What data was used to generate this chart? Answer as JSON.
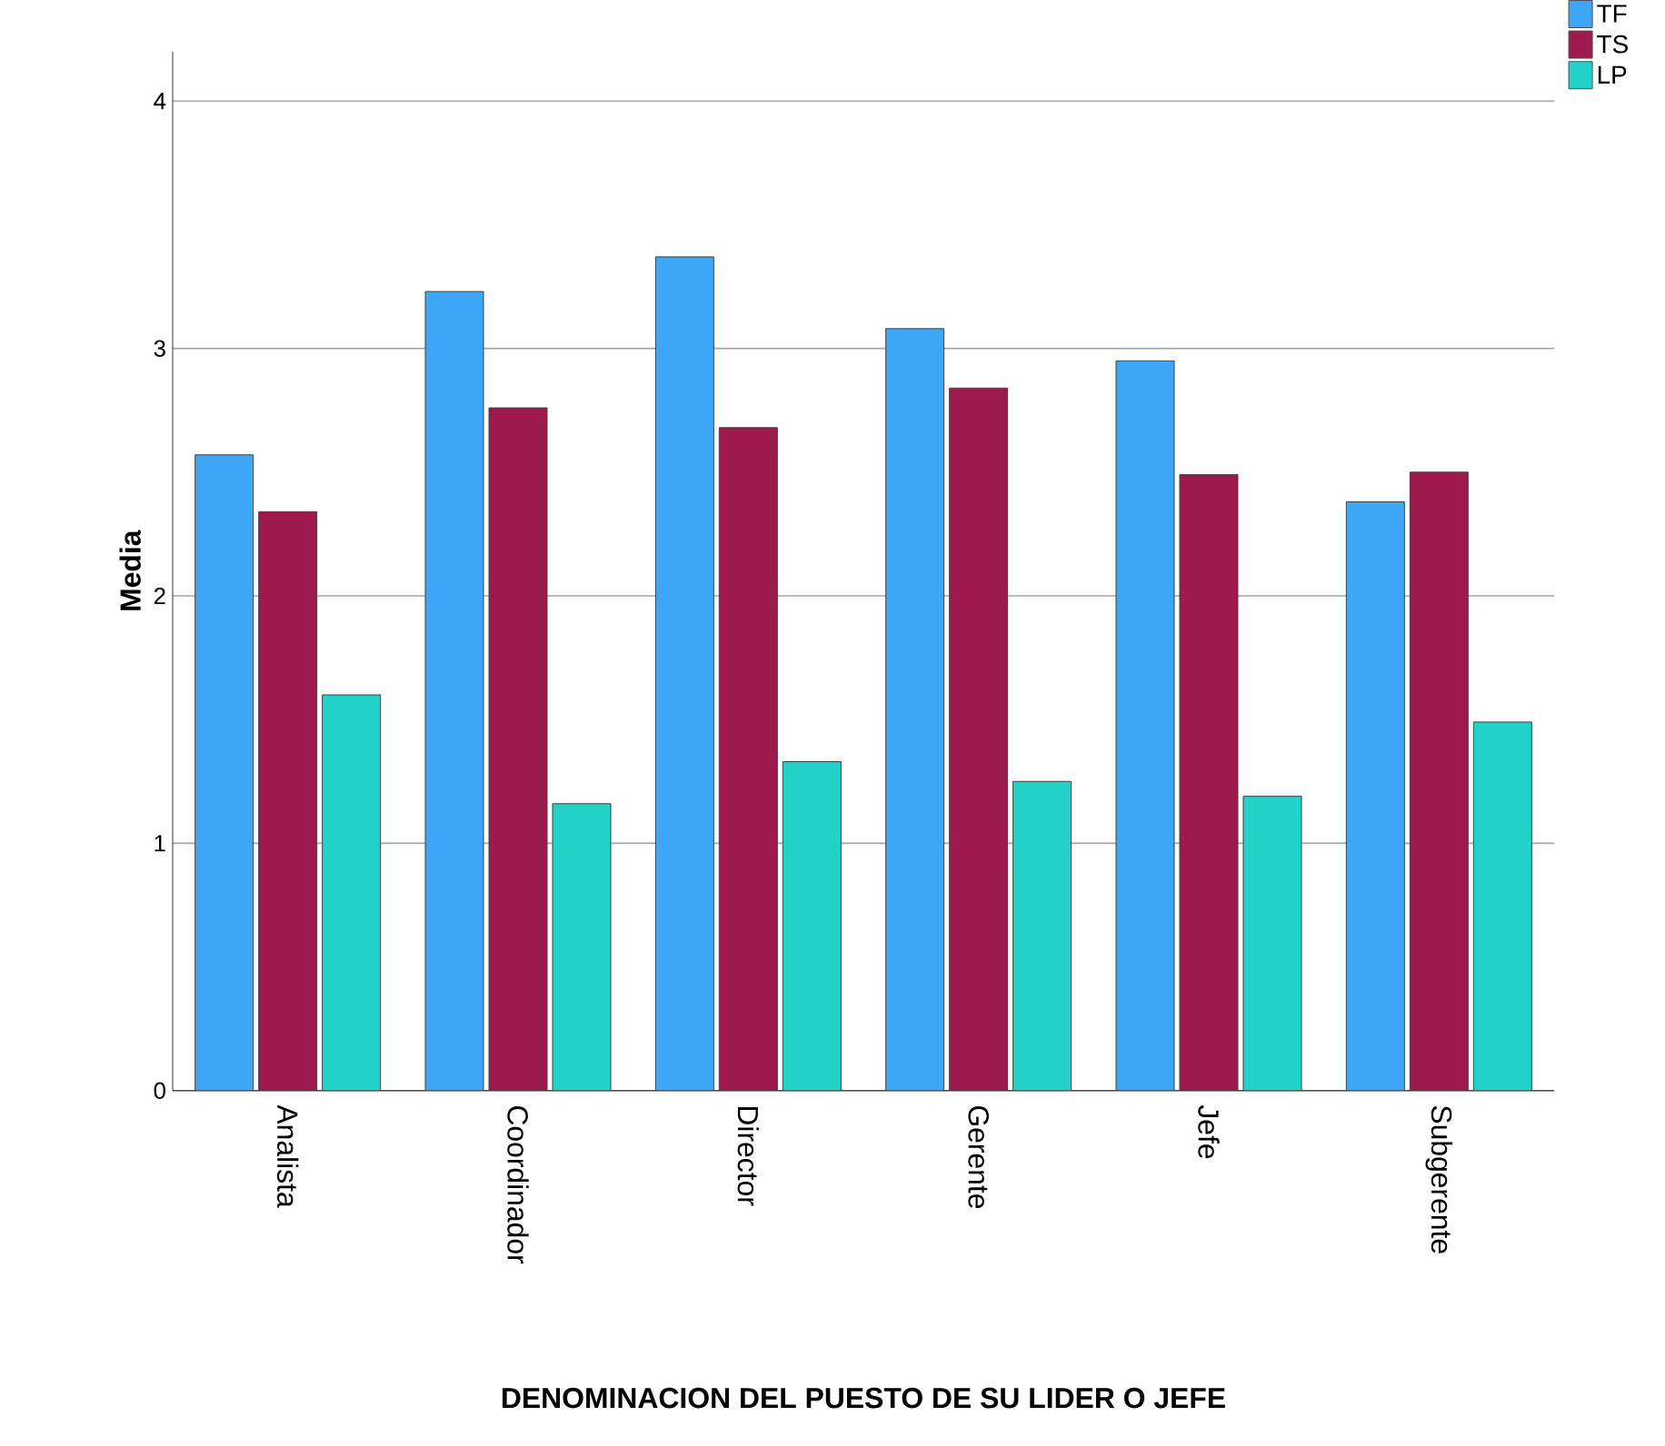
{
  "chart_data": {
    "type": "bar",
    "xlabel": "DENOMINACION DEL PUESTO DE SU LIDER O JEFE",
    "ylabel": "Media",
    "categories": [
      "Analista",
      "Coordinador",
      "Director",
      "Gerente",
      "Jefe",
      "Subgerente"
    ],
    "series": [
      {
        "name": "TF",
        "color": "#3ea6f6",
        "values": [
          2.57,
          3.23,
          3.37,
          3.08,
          2.95,
          2.38
        ]
      },
      {
        "name": "TS",
        "color": "#9e1a4c",
        "values": [
          2.34,
          2.76,
          2.68,
          2.84,
          2.49,
          2.5
        ]
      },
      {
        "name": "LP",
        "color": "#22d1c8",
        "values": [
          1.6,
          1.16,
          1.33,
          1.25,
          1.19,
          1.49
        ]
      }
    ],
    "ylim": [
      0,
      4.2
    ],
    "yticks": [
      0,
      1,
      2,
      3,
      4
    ],
    "grid": "y",
    "legend": "top right"
  }
}
